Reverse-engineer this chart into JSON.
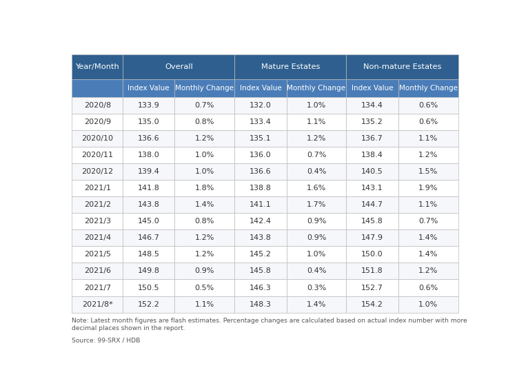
{
  "header_row1": [
    "Year/Month",
    "Overall",
    "Mature Estates",
    "Non-mature Estates"
  ],
  "header_row2": [
    "",
    "Index Value",
    "Monthly Change",
    "Index Value",
    "Monthly Change",
    "Index Value",
    "Monthly Change"
  ],
  "rows": [
    [
      "2020/8",
      "133.9",
      "0.7%",
      "132.0",
      "1.0%",
      "134.4",
      "0.6%"
    ],
    [
      "2020/9",
      "135.0",
      "0.8%",
      "133.4",
      "1.1%",
      "135.2",
      "0.6%"
    ],
    [
      "2020/10",
      "136.6",
      "1.2%",
      "135.1",
      "1.2%",
      "136.7",
      "1.1%"
    ],
    [
      "2020/11",
      "138.0",
      "1.0%",
      "136.0",
      "0.7%",
      "138.4",
      "1.2%"
    ],
    [
      "2020/12",
      "139.4",
      "1.0%",
      "136.6",
      "0.4%",
      "140.5",
      "1.5%"
    ],
    [
      "2021/1",
      "141.8",
      "1.8%",
      "138.8",
      "1.6%",
      "143.1",
      "1.9%"
    ],
    [
      "2021/2",
      "143.8",
      "1.4%",
      "141.1",
      "1.7%",
      "144.7",
      "1.1%"
    ],
    [
      "2021/3",
      "145.0",
      "0.8%",
      "142.4",
      "0.9%",
      "145.8",
      "0.7%"
    ],
    [
      "2021/4",
      "146.7",
      "1.2%",
      "143.8",
      "0.9%",
      "147.9",
      "1.4%"
    ],
    [
      "2021/5",
      "148.5",
      "1.2%",
      "145.2",
      "1.0%",
      "150.0",
      "1.4%"
    ],
    [
      "2021/6",
      "149.8",
      "0.9%",
      "145.8",
      "0.4%",
      "151.8",
      "1.2%"
    ],
    [
      "2021/7",
      "150.5",
      "0.5%",
      "146.3",
      "0.3%",
      "152.7",
      "0.6%"
    ],
    [
      "2021/8*",
      "152.2",
      "1.1%",
      "148.3",
      "1.4%",
      "154.2",
      "1.0%"
    ]
  ],
  "note": "Note: Latest month figures are flash estimates. Percentage changes are calculated based on actual index number with more\ndecimal places shown in the report.",
  "source": "Source: 99-SRX / HDB",
  "header_bg": "#2E5F8F",
  "subheader_bg": "#4A7DB8",
  "header_text_color": "#FFFFFF",
  "border_color": "#BBBBBB",
  "data_text_color": "#333333",
  "note_text_color": "#555555",
  "row_bg_alt": "#F5F7FA",
  "row_bg_main": "#FFFFFF"
}
